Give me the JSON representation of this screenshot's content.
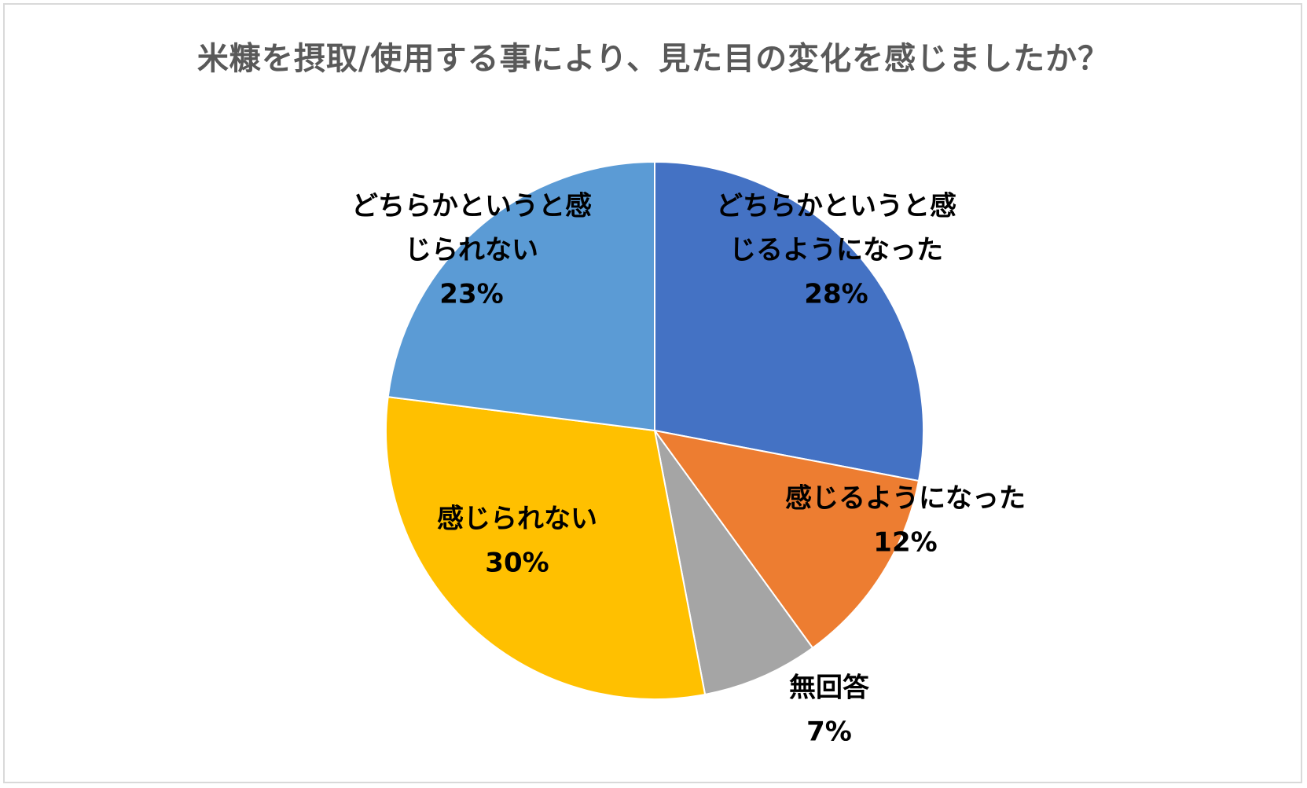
{
  "chart_data": {
    "type": "pie",
    "title": "米糠を摂取/使用する事により、見た目の変化を感じましたか？",
    "slices": [
      {
        "label_lines": [
          "どちらかというと感",
          "じるようになった"
        ],
        "pct_label": "28%",
        "value": 28,
        "color": "#4472C4"
      },
      {
        "label_lines": [
          "感じるようになった"
        ],
        "pct_label": "12%",
        "value": 12,
        "color": "#ED7D31"
      },
      {
        "label_lines": [
          "無回答"
        ],
        "pct_label": "7%",
        "value": 7,
        "color": "#A5A5A5"
      },
      {
        "label_lines": [
          "感じられない"
        ],
        "pct_label": "30%",
        "value": 30,
        "color": "#FFC000"
      },
      {
        "label_lines": [
          "どちらかというと感",
          "じられない"
        ],
        "pct_label": "23%",
        "value": 23,
        "color": "#5B9BD5"
      }
    ],
    "start_angle_deg": 0,
    "direction": "clockwise"
  }
}
